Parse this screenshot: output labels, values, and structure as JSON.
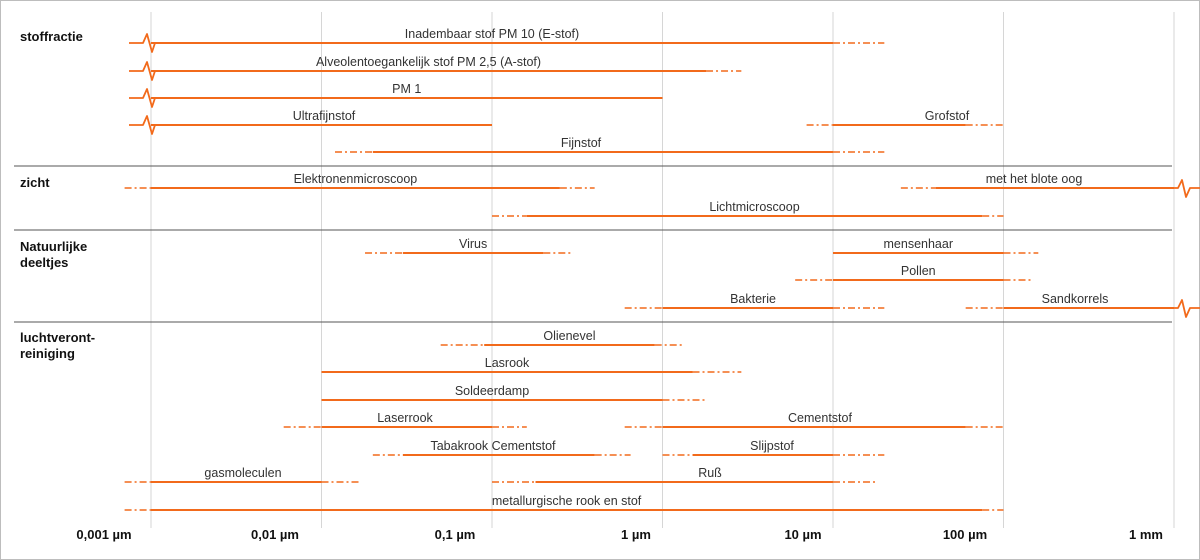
{
  "colors": {
    "bar": "#f26a1b",
    "grid": "#d6d6d6",
    "divider": "#555555"
  },
  "ticks": [
    "0,001 µm",
    "0,01 µm",
    "0,1 µm",
    "1 µm",
    "10 µm",
    "100 µm",
    "1 mm"
  ],
  "categories": [
    {
      "label": "stoffractie"
    },
    {
      "label": "zicht"
    },
    {
      "label": "Natuurlijke deeltjes"
    },
    {
      "label": "luchtveront-reiniging"
    }
  ],
  "chart_data": {
    "type": "range",
    "x_scale": "log",
    "x_unit": "µm",
    "x_ticks": [
      0.001,
      0.01,
      0.1,
      1,
      10,
      100,
      1000
    ],
    "groups": [
      {
        "group": "stoffractie",
        "items": [
          {
            "label": "Inadembaar stof PM 10 (E-stof)",
            "solid": [
              0.001,
              10
            ],
            "dashed_to": 20,
            "break_left": true
          },
          {
            "label": "Alveolentoegankelijk stof PM 2,5 (A-stof)",
            "solid": [
              0.001,
              1.8
            ],
            "dashed_to": 2.9,
            "break_left": true
          },
          {
            "label": "PM 1",
            "solid": [
              0.001,
              1
            ],
            "break_left": true
          },
          {
            "label": "Ultrafijnstof",
            "solid": [
              0.001,
              0.1
            ],
            "break_left": true
          },
          {
            "label": "Grofstof",
            "solid": [
              10,
              60
            ],
            "dashed_from": 7,
            "dashed_to": 100
          },
          {
            "label": "Fijnstof",
            "solid": [
              0.02,
              10
            ],
            "dashed_from": 0.012,
            "dashed_to": 20
          }
        ]
      },
      {
        "group": "zicht",
        "items": [
          {
            "label": "Elektronenmicroscoop",
            "solid": [
              0.001,
              0.25
            ],
            "dashed_from": 0.0007,
            "dashed_to": 0.4
          },
          {
            "label": "met het blote oog",
            "solid": [
              40,
              1000
            ],
            "dashed_from": 25,
            "break_right": true
          },
          {
            "label": "Lichtmicroscoop",
            "solid": [
              0.16,
              75
            ],
            "dashed_from": 0.1,
            "dashed_to": 100
          }
        ]
      },
      {
        "group": "Natuurlijke deeltjes",
        "items": [
          {
            "label": "Virus",
            "solid": [
              0.03,
              0.2
            ],
            "dashed_from": 0.018,
            "dashed_to": 0.3
          },
          {
            "label": "mensenhaar",
            "solid": [
              10,
              100
            ],
            "dashed_to": 160
          },
          {
            "label": "Pollen",
            "solid": [
              10,
              100
            ],
            "dashed_from": 6,
            "dashed_to": 150
          },
          {
            "label": "Bakterie",
            "solid": [
              1,
              10
            ],
            "dashed_from": 0.6,
            "dashed_to": 20
          },
          {
            "label": "Sandkorrels",
            "solid": [
              100,
              1000
            ],
            "dashed_from": 60,
            "break_right": true
          }
        ]
      },
      {
        "group": "luchtveront-reiniging",
        "items": [
          {
            "label": "Olienevel",
            "solid": [
              0.09,
              0.9
            ],
            "dashed_from": 0.05,
            "dashed_to": 1.3
          },
          {
            "label": "Lasrook",
            "solid": [
              0.01,
              1.5
            ],
            "dashed_to": 2.9
          },
          {
            "label": "Soldeerdamp",
            "solid": [
              0.01,
              1
            ],
            "dashed_to": 1.8
          },
          {
            "label": "Laserrook",
            "solid": [
              0.01,
              0.1
            ],
            "dashed_from": 0.006,
            "dashed_to": 0.16
          },
          {
            "label": "Cementstof",
            "solid": [
              1,
              60
            ],
            "dashed_from": 0.6,
            "dashed_to": 100
          },
          {
            "label": "Tabakrook Cementstof",
            "solid": [
              0.03,
              0.4
            ],
            "dashed_from": 0.02,
            "dashed_to": 0.65
          },
          {
            "label": "Slijpstof",
            "solid": [
              1.5,
              10
            ],
            "dashed_from": 1,
            "dashed_to": 20
          },
          {
            "label": "gasmoleculen",
            "solid": [
              0.001,
              0.01
            ],
            "dashed_from": 0.0007,
            "dashed_to": 0.017
          },
          {
            "label": "Ruß",
            "solid": [
              0.18,
              10
            ],
            "dashed_from": 0.1,
            "dashed_to": 18
          },
          {
            "label": "metallurgische rook en stof",
            "solid": [
              0.001,
              75
            ],
            "dashed_from": 0.0007,
            "dashed_to": 100
          }
        ]
      }
    ]
  }
}
